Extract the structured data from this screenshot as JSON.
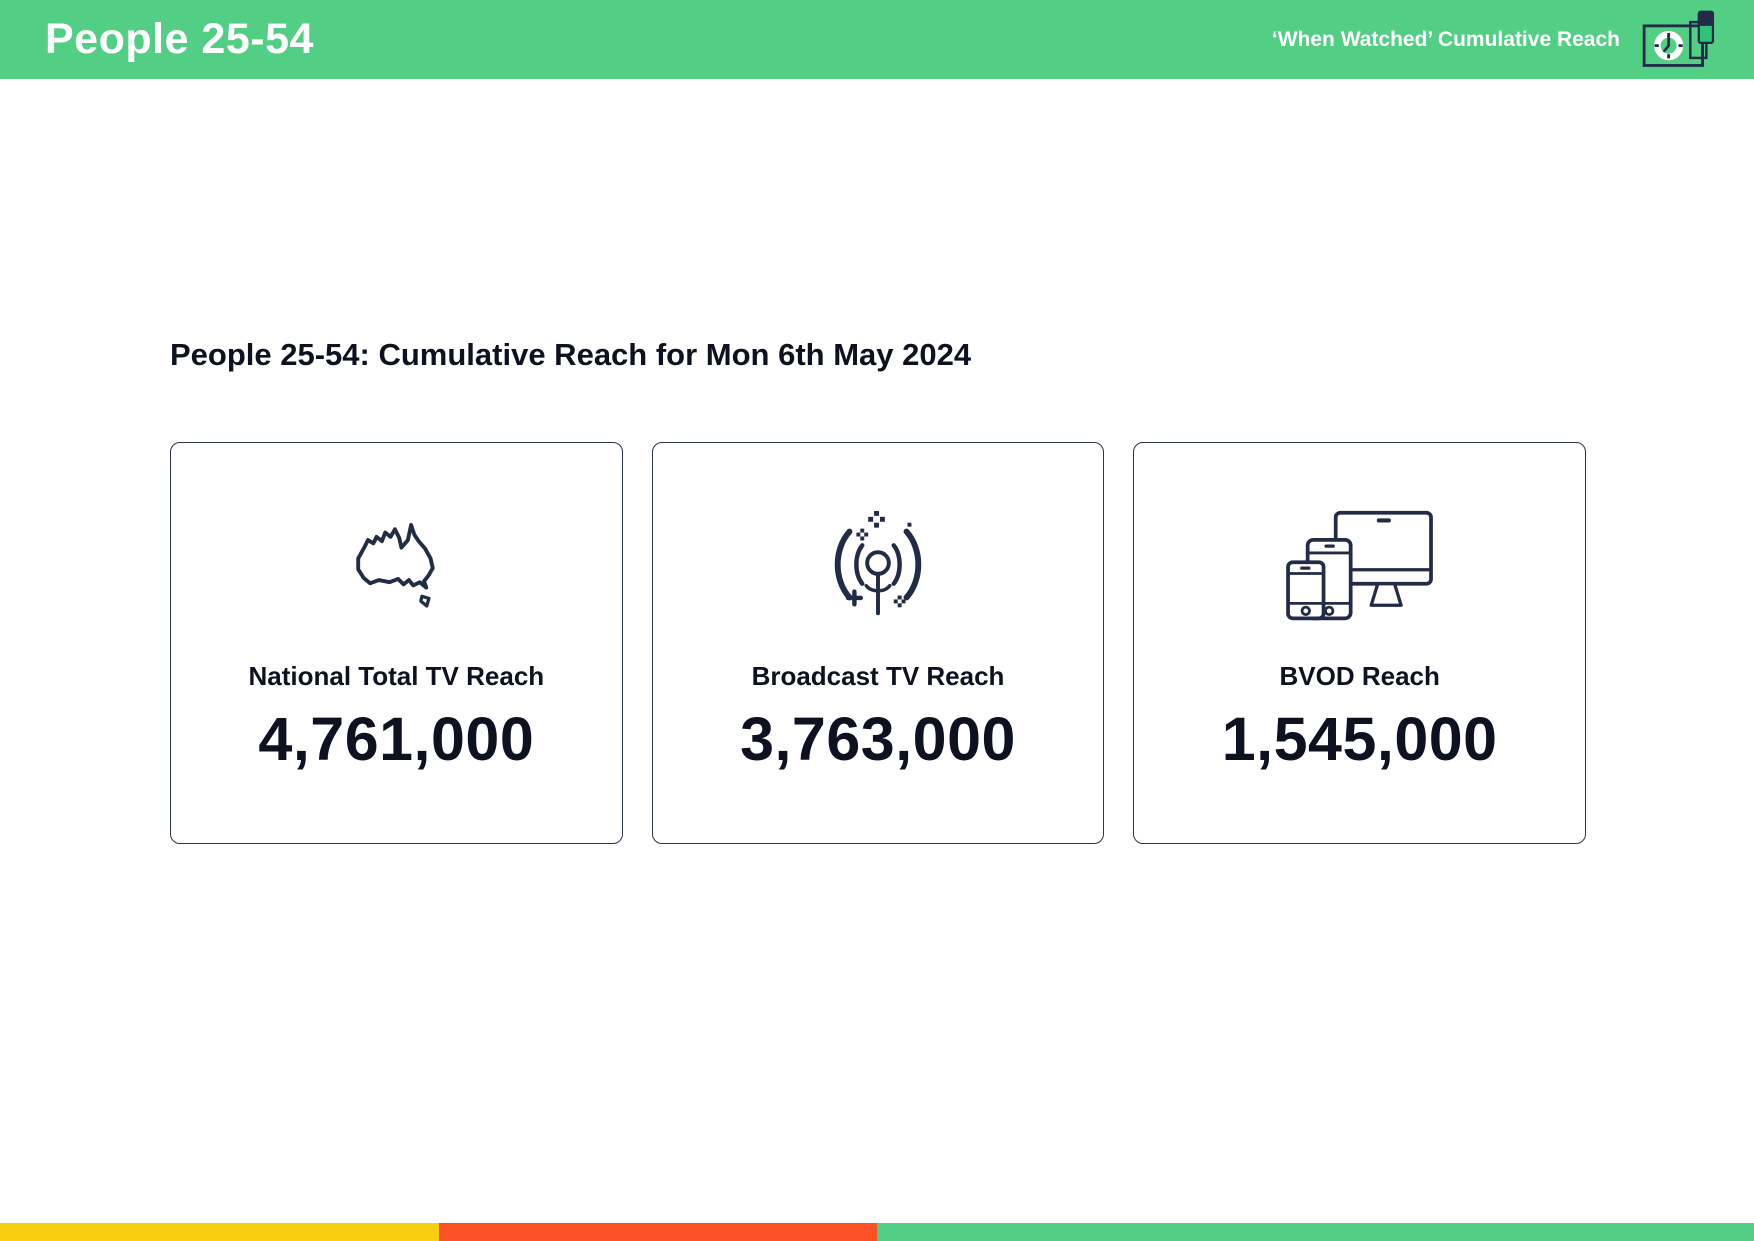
{
  "header": {
    "title": "People 25-54",
    "subtitle": "‘When Watched’ Cumulative Reach",
    "icon": "when-watched-clock-icon"
  },
  "main": {
    "heading": "People 25-54: Cumulative Reach for Mon 6th May 2024",
    "cards": [
      {
        "icon": "australia-map-icon",
        "label": "National Total TV Reach",
        "value": "4,761,000"
      },
      {
        "icon": "broadcast-antenna-icon",
        "label": "Broadcast TV Reach",
        "value": "3,763,000"
      },
      {
        "icon": "devices-icon",
        "label": "BVOD Reach",
        "value": "1,545,000"
      }
    ]
  },
  "footer": {
    "segments": [
      {
        "name": "yellow",
        "color": "#F9CD10",
        "width_pct": 25
      },
      {
        "name": "red",
        "color": "#FF5126",
        "width_pct": 25
      },
      {
        "name": "green",
        "color": "#53CF85",
        "width_pct": 50
      }
    ]
  },
  "colors": {
    "header-green": "#53CF85",
    "icon-navy": "#222C47",
    "ink": "#0E1220",
    "card-border": "#2A3447",
    "accent-green-dark": "#2EC377"
  }
}
